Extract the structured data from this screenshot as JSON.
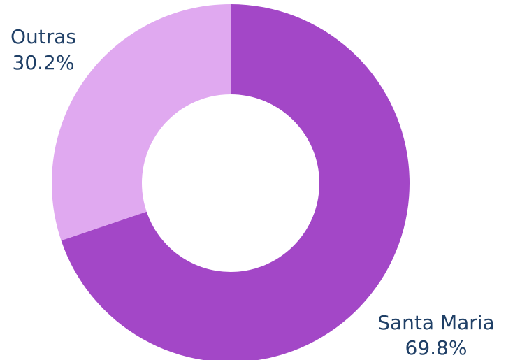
{
  "chart_data": {
    "type": "pie",
    "variant": "donut",
    "title": "",
    "slices": [
      {
        "label": "Santa Maria",
        "value": 69.8,
        "value_label": "69.8%",
        "color": "#a347c7"
      },
      {
        "label": "Outras",
        "value": 30.2,
        "value_label": "30.2%",
        "color": "#e0a9f0"
      }
    ],
    "label_color": "#1f3f66",
    "background": "#ffffff"
  }
}
